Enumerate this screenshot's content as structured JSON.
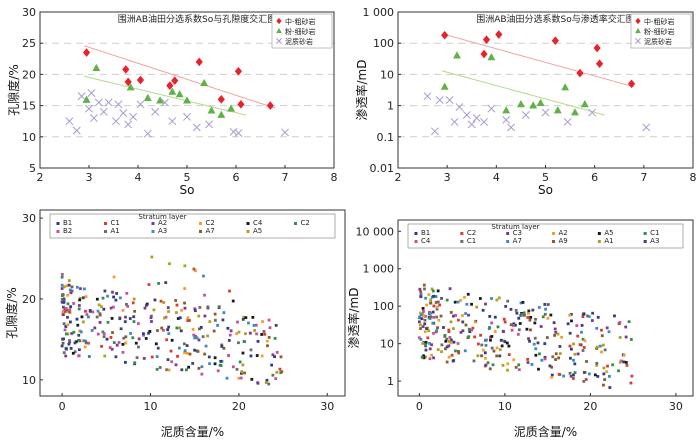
{
  "chart_data": [
    {
      "type": "scatter",
      "title": "围洲AB油田分选系数So与孔隙度交汇图",
      "xlabel": "So",
      "ylabel": "孔隙度/%",
      "xlim": [
        2,
        8
      ],
      "ylim": [
        5,
        30
      ],
      "xticks": [
        "2",
        "3",
        "4",
        "5",
        "6",
        "7",
        "8"
      ],
      "yticks": [
        "5",
        "10",
        "15",
        "20",
        "25",
        "30"
      ],
      "grid": "horizontal dashed",
      "legend_position": "top-right",
      "series": [
        {
          "name": "中-粗砂岩",
          "marker": "diamond",
          "color": "#e8212b",
          "x": [
            2.95,
            3.75,
            4.05,
            4.75,
            5.25,
            6.05,
            6.1,
            6.7,
            3.8,
            4.65,
            5.7
          ],
          "y": [
            23.5,
            20.8,
            19.1,
            19.0,
            22.0,
            20.5,
            15.2,
            15.0,
            18.8,
            18.2,
            16.0
          ]
        },
        {
          "name": "粉-细砂岩",
          "marker": "triangle",
          "color": "#5fb246",
          "x": [
            2.95,
            3.15,
            3.85,
            4.2,
            4.45,
            4.7,
            4.85,
            5.0,
            5.35,
            5.5,
            5.7,
            5.9
          ],
          "y": [
            15.9,
            21.0,
            17.9,
            16.2,
            15.8,
            17.2,
            16.8,
            15.8,
            18.6,
            14.2,
            13.5,
            14.5
          ],
          "fit": [
            [
              2.9,
              19.7
            ],
            [
              6.2,
              13.5
            ]
          ]
        },
        {
          "name": "泥质砂岩",
          "marker": "x",
          "color": "#a99ad0",
          "x": [
            2.6,
            2.75,
            2.85,
            3.0,
            3.05,
            3.1,
            3.2,
            3.3,
            3.4,
            3.55,
            3.6,
            3.7,
            3.8,
            3.9,
            4.05,
            4.2,
            4.35,
            4.55,
            4.7,
            5.0,
            5.2,
            5.45,
            5.95,
            6.05,
            7.0
          ],
          "y": [
            12.5,
            11.0,
            16.5,
            14.5,
            17.0,
            13.0,
            15.5,
            14.0,
            15.5,
            12.5,
            15.2,
            13.8,
            12.0,
            13.2,
            15.2,
            10.5,
            14.0,
            15.5,
            12.5,
            13.2,
            11.5,
            12.0,
            10.8,
            10.6,
            10.7
          ]
        }
      ],
      "trend_red": [
        [
          2.9,
          24.6
        ],
        [
          6.8,
          14.6
        ]
      ]
    },
    {
      "type": "scatter",
      "title": "围洲AB油田分选系数So与渗透率交汇图",
      "xlabel": "So",
      "ylabel": "渗透率/mD",
      "xscale": "log-y",
      "xlim": [
        2,
        8
      ],
      "ylim": [
        0.01,
        1000
      ],
      "xticks": [
        "2",
        "3",
        "4",
        "5",
        "6",
        "7",
        "8"
      ],
      "yticks": [
        "0.01",
        "0.1",
        "1",
        "10",
        "100",
        "1 000"
      ],
      "grid": "horizontal dashed",
      "legend_position": "top-right",
      "series": [
        {
          "name": "中-粗砂岩",
          "marker": "diamond",
          "color": "#e8212b",
          "x": [
            2.95,
            3.75,
            3.8,
            4.05,
            5.2,
            5.7,
            6.05,
            6.1,
            6.75
          ],
          "y": [
            180,
            45,
            130,
            190,
            120,
            11,
            70,
            22,
            5
          ]
        },
        {
          "name": "粉-细砂岩",
          "marker": "triangle",
          "color": "#5fb246",
          "x": [
            2.95,
            3.2,
            3.9,
            4.2,
            4.5,
            4.75,
            4.9,
            5.25,
            5.4,
            5.6,
            5.8
          ],
          "y": [
            4,
            40,
            35,
            0.7,
            1.1,
            1.0,
            1.2,
            0.7,
            3.8,
            0.6,
            1.1
          ],
          "fit": [
            [
              2.9,
              13
            ],
            [
              6.2,
              0.5
            ]
          ]
        },
        {
          "name": "泥质砂岩",
          "marker": "x",
          "color": "#a99ad0",
          "x": [
            2.6,
            2.75,
            2.85,
            3.05,
            3.15,
            3.25,
            3.4,
            3.5,
            3.6,
            3.75,
            3.9,
            4.2,
            4.3,
            4.6,
            5.0,
            5.45,
            5.95,
            7.05
          ],
          "y": [
            2,
            0.15,
            1.5,
            1.5,
            0.3,
            0.9,
            0.5,
            0.25,
            0.4,
            0.3,
            0.8,
            0.35,
            0.2,
            0.5,
            0.6,
            0.3,
            0.6,
            0.2
          ]
        }
      ],
      "trend_red": [
        [
          2.9,
          200
        ],
        [
          6.8,
          4
        ]
      ]
    },
    {
      "type": "scatter",
      "xlabel": "泥质含量/%",
      "ylabel": "孔隙度/%",
      "xlim": [
        -2.5,
        32
      ],
      "ylim": [
        8,
        31
      ],
      "xticks": [
        "0",
        "10",
        "20",
        "30"
      ],
      "yticks": [
        "10",
        "20",
        "30"
      ],
      "legend_position": "top",
      "legend_title": "Stratum layer",
      "legend": [
        "B1",
        "C1",
        "A2",
        "C2",
        "C4",
        "C2",
        "B2",
        "A1",
        "A3",
        "A7",
        "A5"
      ],
      "point_count": 360
    },
    {
      "type": "scatter",
      "xlabel": "泥质含量/%",
      "ylabel": "渗透率/mD",
      "yscale": "log",
      "xlim": [
        -2.5,
        32
      ],
      "ylim": [
        0.4,
        20000
      ],
      "xticks": [
        "0",
        "10",
        "20",
        "30"
      ],
      "yticks": [
        "1",
        "10",
        "100",
        "1 000",
        "10 000"
      ],
      "legend_position": "top",
      "legend_title": "Stratum layer",
      "legend": [
        "B1",
        "C2",
        "C3",
        "A2",
        "A5",
        "C1",
        "C4",
        "C1",
        "A7",
        "A9",
        "A1",
        "A3"
      ],
      "point_count": 360
    }
  ]
}
